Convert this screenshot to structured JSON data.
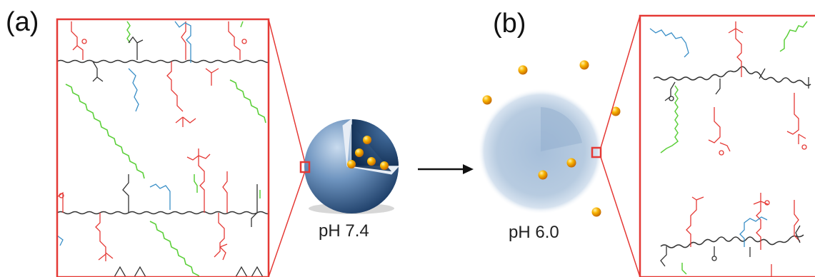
{
  "panels": {
    "a": {
      "label": "(a)",
      "ph": "pH 7.4"
    },
    "b": {
      "label": "(b)",
      "ph": "pH 6.0"
    }
  },
  "colors": {
    "frame": "#e53935",
    "backbone": "#333333",
    "tertiary_amine": "#e53935",
    "peg": "#3a8fc7",
    "alkyl": "#5ccf3a",
    "micelle": "#3c6c9e",
    "cargo": "#f5a300"
  }
}
